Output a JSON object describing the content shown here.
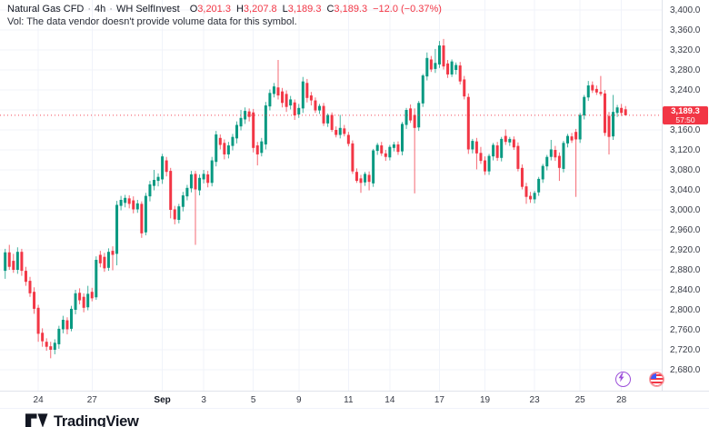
{
  "header": {
    "symbol": "Natural Gas CFD",
    "separator": "·",
    "interval": "4h",
    "broker": "WH SelfInvest",
    "ohlc": {
      "o_label": "O",
      "o": "3,201.3",
      "h_label": "H",
      "h": "3,207.8",
      "l_label": "L",
      "l": "3,189.3",
      "c_label": "C",
      "c": "3,189.3"
    },
    "change": "−12.0 (−0.37%)",
    "vol_message": "Vol: The data vendor doesn't provide volume data for this symbol."
  },
  "price_axis": {
    "labels": [
      {
        "text": "3,400.0",
        "value": 3400
      },
      {
        "text": "3,360.0",
        "value": 3360
      },
      {
        "text": "3,320.0",
        "value": 3320
      },
      {
        "text": "3,280.0",
        "value": 3280
      },
      {
        "text": "3,240.0",
        "value": 3240
      },
      {
        "text": "3,200.0",
        "value": 3200
      },
      {
        "text": "3,160.0",
        "value": 3160
      },
      {
        "text": "3,120.0",
        "value": 3120
      },
      {
        "text": "3,080.0",
        "value": 3080
      },
      {
        "text": "3,040.0",
        "value": 3040
      },
      {
        "text": "3,000.0",
        "value": 3000
      },
      {
        "text": "2,960.0",
        "value": 2960
      },
      {
        "text": "2,920.0",
        "value": 2920
      },
      {
        "text": "2,880.0",
        "value": 2880
      },
      {
        "text": "2,840.0",
        "value": 2840
      },
      {
        "text": "2,800.0",
        "value": 2800
      },
      {
        "text": "2,760.0",
        "value": 2760
      },
      {
        "text": "2,720.0",
        "value": 2720
      },
      {
        "text": "2,680.0",
        "value": 2680
      }
    ],
    "current_price_badge": {
      "price": "3,189.3",
      "countdown": "57:50"
    }
  },
  "time_axis": {
    "ticks": [
      {
        "label": "24",
        "i": 8
      },
      {
        "label": "27",
        "i": 21
      },
      {
        "label": "Sep",
        "i": 38,
        "bold": true
      },
      {
        "label": "3",
        "i": 48
      },
      {
        "label": "5",
        "i": 60
      },
      {
        "label": "9",
        "i": 71
      },
      {
        "label": "11",
        "i": 83
      },
      {
        "label": "14",
        "i": 93
      },
      {
        "label": "17",
        "i": 105
      },
      {
        "label": "19",
        "i": 116
      },
      {
        "label": "23",
        "i": 128
      },
      {
        "label": "25",
        "i": 139
      },
      {
        "label": "28",
        "i": 149
      }
    ]
  },
  "overlays": {
    "events_icon": "lightning-icon",
    "flag_icon": "us-flag-icon"
  },
  "footer": {
    "logo_text": "TradingView"
  },
  "colors": {
    "up": "#089981",
    "down": "#f23645",
    "grid": "#f0f3fa",
    "axis_border": "#e0e3eb",
    "text": "#131722",
    "muted_text": "#787b86",
    "price_line": "#f23645",
    "badge_bg": "#f23645",
    "badge_text": "#ffffff",
    "purple": "#9c4fd9"
  },
  "chart_data": {
    "type": "candlestick",
    "title": "Natural Gas CFD · 4h · WH SelfInvest",
    "ylim": [
      2680,
      3400
    ],
    "y_step": 40,
    "grid": true,
    "current_price": 3189.3,
    "last_candle": {
      "open": 3201.3,
      "high": 3207.8,
      "low": 3189.3,
      "close": 3189.3,
      "change": -12.0,
      "change_pct": -0.37
    },
    "x_axis_dates": [
      "Aug 24",
      "Aug 27",
      "Sep",
      "Sep 3",
      "Sep 5",
      "Sep 9",
      "Sep 11",
      "Sep 14",
      "Sep 17",
      "Sep 19",
      "Sep 23",
      "Sep 25",
      "Sep 28"
    ],
    "candles": [
      [
        2878,
        2922,
        2862,
        2915
      ],
      [
        2915,
        2930,
        2880,
        2886
      ],
      [
        2898,
        2912,
        2874,
        2880
      ],
      [
        2880,
        2925,
        2872,
        2916
      ],
      [
        2916,
        2922,
        2868,
        2878
      ],
      [
        2878,
        2886,
        2848,
        2856
      ],
      [
        2858,
        2866,
        2826,
        2833
      ],
      [
        2836,
        2845,
        2792,
        2802
      ],
      [
        2804,
        2810,
        2736,
        2752
      ],
      [
        2754,
        2763,
        2726,
        2737
      ],
      [
        2736,
        2743,
        2718,
        2726
      ],
      [
        2727,
        2736,
        2703,
        2720
      ],
      [
        2720,
        2741,
        2711,
        2734
      ],
      [
        2731,
        2768,
        2722,
        2762
      ],
      [
        2761,
        2788,
        2753,
        2780
      ],
      [
        2779,
        2785,
        2751,
        2761
      ],
      [
        2762,
        2808,
        2757,
        2802
      ],
      [
        2800,
        2840,
        2791,
        2833
      ],
      [
        2834,
        2843,
        2811,
        2819
      ],
      [
        2826,
        2833,
        2795,
        2804
      ],
      [
        2805,
        2848,
        2799,
        2832
      ],
      [
        2836,
        2844,
        2817,
        2823
      ],
      [
        2825,
        2907,
        2820,
        2900
      ],
      [
        2910,
        2918,
        2885,
        2893
      ],
      [
        2906,
        2914,
        2876,
        2883
      ],
      [
        2884,
        2923,
        2878,
        2916
      ],
      [
        2918,
        2927,
        2879,
        2910
      ],
      [
        2912,
        3018,
        2889,
        3010
      ],
      [
        3008,
        3028,
        2999,
        3020
      ],
      [
        3014,
        3030,
        3005,
        3024
      ],
      [
        3023,
        3029,
        3003,
        3012
      ],
      [
        3019,
        3027,
        2993,
        3001
      ],
      [
        3001,
        3020,
        2994,
        3013
      ],
      [
        3012,
        3017,
        2944,
        2953
      ],
      [
        2955,
        3034,
        2949,
        3028
      ],
      [
        3027,
        3058,
        3017,
        3051
      ],
      [
        3048,
        3080,
        3039,
        3060
      ],
      [
        3058,
        3073,
        3047,
        3066
      ],
      [
        3061,
        3112,
        3052,
        3107
      ],
      [
        3099,
        3106,
        3067,
        3076
      ],
      [
        3078,
        3084,
        2983,
        3000
      ],
      [
        3001,
        3008,
        2971,
        2981
      ],
      [
        2980,
        3012,
        2973,
        3007
      ],
      [
        3006,
        3036,
        2997,
        3029
      ],
      [
        3027,
        3050,
        3019,
        3044
      ],
      [
        3043,
        3078,
        3035,
        3071
      ],
      [
        3072,
        3078,
        2930,
        3041
      ],
      [
        3039,
        3071,
        3029,
        3064
      ],
      [
        3061,
        3080,
        3053,
        3072
      ],
      [
        3071,
        3078,
        3045,
        3054
      ],
      [
        3054,
        3106,
        3047,
        3099
      ],
      [
        3096,
        3158,
        3087,
        3151
      ],
      [
        3144,
        3151,
        3121,
        3130
      ],
      [
        3134,
        3141,
        3101,
        3111
      ],
      [
        3111,
        3136,
        3103,
        3129
      ],
      [
        3128,
        3152,
        3119,
        3146
      ],
      [
        3143,
        3177,
        3133,
        3170
      ],
      [
        3167,
        3200,
        3159,
        3184
      ],
      [
        3181,
        3205,
        3172,
        3198
      ],
      [
        3197,
        3203,
        3177,
        3186
      ],
      [
        3195,
        3202,
        3115,
        3124
      ],
      [
        3129,
        3136,
        3089,
        3111
      ],
      [
        3114,
        3144,
        3107,
        3137
      ],
      [
        3131,
        3216,
        3121,
        3209
      ],
      [
        3207,
        3241,
        3199,
        3234
      ],
      [
        3232,
        3254,
        3225,
        3247
      ],
      [
        3245,
        3300,
        3221,
        3229
      ],
      [
        3237,
        3244,
        3205,
        3214
      ],
      [
        3232,
        3239,
        3196,
        3206
      ],
      [
        3209,
        3228,
        3201,
        3221
      ],
      [
        3215,
        3221,
        3180,
        3189
      ],
      [
        3191,
        3212,
        3184,
        3204
      ],
      [
        3203,
        3266,
        3194,
        3257
      ],
      [
        3254,
        3262,
        3215,
        3224
      ],
      [
        3229,
        3236,
        3209,
        3219
      ],
      [
        3219,
        3225,
        3194,
        3199
      ],
      [
        3199,
        3212,
        3192,
        3208
      ],
      [
        3208,
        3214,
        3168,
        3173
      ],
      [
        3173,
        3193,
        3166,
        3190
      ],
      [
        3190,
        3195,
        3156,
        3160
      ],
      [
        3160,
        3167,
        3145,
        3150
      ],
      [
        3150,
        3190,
        3143,
        3164
      ],
      [
        3163,
        3170,
        3147,
        3152
      ],
      [
        3150,
        3156,
        3127,
        3132
      ],
      [
        3133,
        3139,
        3072,
        3077
      ],
      [
        3076,
        3083,
        3054,
        3058
      ],
      [
        3063,
        3070,
        3034,
        3054
      ],
      [
        3055,
        3076,
        3048,
        3072
      ],
      [
        3070,
        3077,
        3039,
        3056
      ],
      [
        3053,
        3122,
        3046,
        3119
      ],
      [
        3118,
        3134,
        3110,
        3130
      ],
      [
        3129,
        3136,
        3108,
        3113
      ],
      [
        3113,
        3120,
        3098,
        3106
      ],
      [
        3105,
        3130,
        3099,
        3126
      ],
      [
        3124,
        3136,
        3117,
        3131
      ],
      [
        3131,
        3137,
        3110,
        3116
      ],
      [
        3117,
        3176,
        3109,
        3172
      ],
      [
        3170,
        3204,
        3162,
        3200
      ],
      [
        3203,
        3211,
        3174,
        3179
      ],
      [
        3190,
        3203,
        3033,
        3164
      ],
      [
        3165,
        3218,
        3158,
        3214
      ],
      [
        3213,
        3272,
        3206,
        3269
      ],
      [
        3267,
        3315,
        3259,
        3304
      ],
      [
        3301,
        3308,
        3276,
        3281
      ],
      [
        3282,
        3322,
        3274,
        3294
      ],
      [
        3291,
        3338,
        3284,
        3329
      ],
      [
        3329,
        3342,
        3281,
        3287
      ],
      [
        3293,
        3300,
        3264,
        3271
      ],
      [
        3271,
        3301,
        3266,
        3297
      ],
      [
        3280,
        3295,
        3271,
        3290
      ],
      [
        3289,
        3296,
        3251,
        3257
      ],
      [
        3261,
        3268,
        3221,
        3227
      ],
      [
        3226,
        3233,
        3112,
        3121
      ],
      [
        3121,
        3142,
        3113,
        3138
      ],
      [
        3137,
        3144,
        3081,
        3113
      ],
      [
        3114,
        3126,
        3092,
        3098
      ],
      [
        3099,
        3107,
        3070,
        3077
      ],
      [
        3077,
        3112,
        3070,
        3108
      ],
      [
        3107,
        3134,
        3099,
        3130
      ],
      [
        3129,
        3136,
        3098,
        3104
      ],
      [
        3104,
        3146,
        3097,
        3142
      ],
      [
        3148,
        3161,
        3130,
        3136
      ],
      [
        3135,
        3146,
        3128,
        3142
      ],
      [
        3141,
        3147,
        3120,
        3125
      ],
      [
        3128,
        3135,
        3077,
        3082
      ],
      [
        3084,
        3091,
        3041,
        3046
      ],
      [
        3047,
        3054,
        3012,
        3026
      ],
      [
        3028,
        3036,
        3014,
        3021
      ],
      [
        3021,
        3038,
        3013,
        3034
      ],
      [
        3035,
        3066,
        3028,
        3062
      ],
      [
        3061,
        3092,
        3054,
        3088
      ],
      [
        3087,
        3110,
        3079,
        3106
      ],
      [
        3106,
        3140,
        3099,
        3121
      ],
      [
        3120,
        3128,
        3098,
        3105
      ],
      [
        3108,
        3115,
        3058,
        3084
      ],
      [
        3082,
        3138,
        3075,
        3134
      ],
      [
        3133,
        3152,
        3125,
        3148
      ],
      [
        3147,
        3154,
        3134,
        3139
      ],
      [
        3156,
        3162,
        3026,
        3141
      ],
      [
        3141,
        3194,
        3134,
        3190
      ],
      [
        3189,
        3230,
        3181,
        3226
      ],
      [
        3225,
        3258,
        3218,
        3249
      ],
      [
        3250,
        3257,
        3234,
        3239
      ],
      [
        3242,
        3249,
        3230,
        3235
      ],
      [
        3236,
        3268,
        3228,
        3232
      ],
      [
        3233,
        3240,
        3148,
        3154
      ],
      [
        3188,
        3196,
        3111,
        3146
      ],
      [
        3147,
        3230,
        3140,
        3196
      ],
      [
        3194,
        3210,
        3186,
        3205
      ],
      [
        3204,
        3212,
        3188,
        3194
      ],
      [
        3201.3,
        3207.8,
        3189.3,
        3189.3
      ]
    ]
  }
}
